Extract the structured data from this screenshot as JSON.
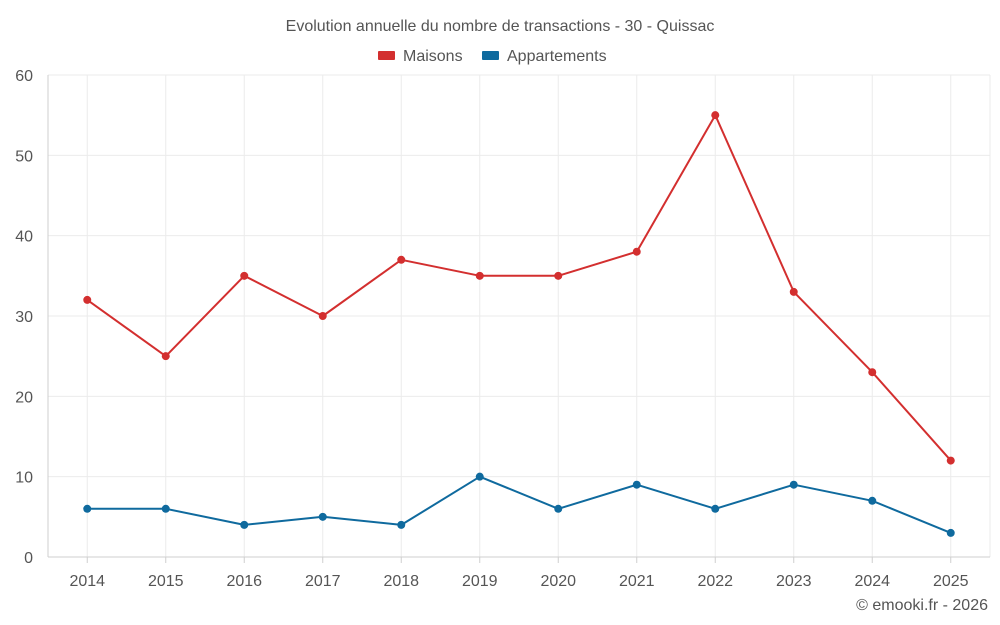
{
  "chart_data": {
    "type": "line",
    "title": "Evolution annuelle du nombre de transactions - 30 - Quissac",
    "categories": [
      "2014",
      "2015",
      "2016",
      "2017",
      "2018",
      "2019",
      "2020",
      "2021",
      "2022",
      "2023",
      "2024",
      "2025"
    ],
    "series": [
      {
        "name": "Maisons",
        "color": "#d32f2f",
        "values": [
          32,
          25,
          35,
          30,
          37,
          35,
          35,
          38,
          55,
          33,
          23,
          12
        ]
      },
      {
        "name": "Appartements",
        "color": "#0f6a9e",
        "values": [
          6,
          6,
          4,
          5,
          4,
          10,
          6,
          9,
          6,
          9,
          7,
          3
        ]
      }
    ],
    "ylim": [
      0,
      60
    ],
    "yticks": [
      "0",
      "10",
      "20",
      "30",
      "40",
      "50",
      "60"
    ],
    "xlabel": "",
    "ylabel": "",
    "grid": true,
    "legend": "top-center"
  },
  "credit": "© emooki.fr - 2026"
}
